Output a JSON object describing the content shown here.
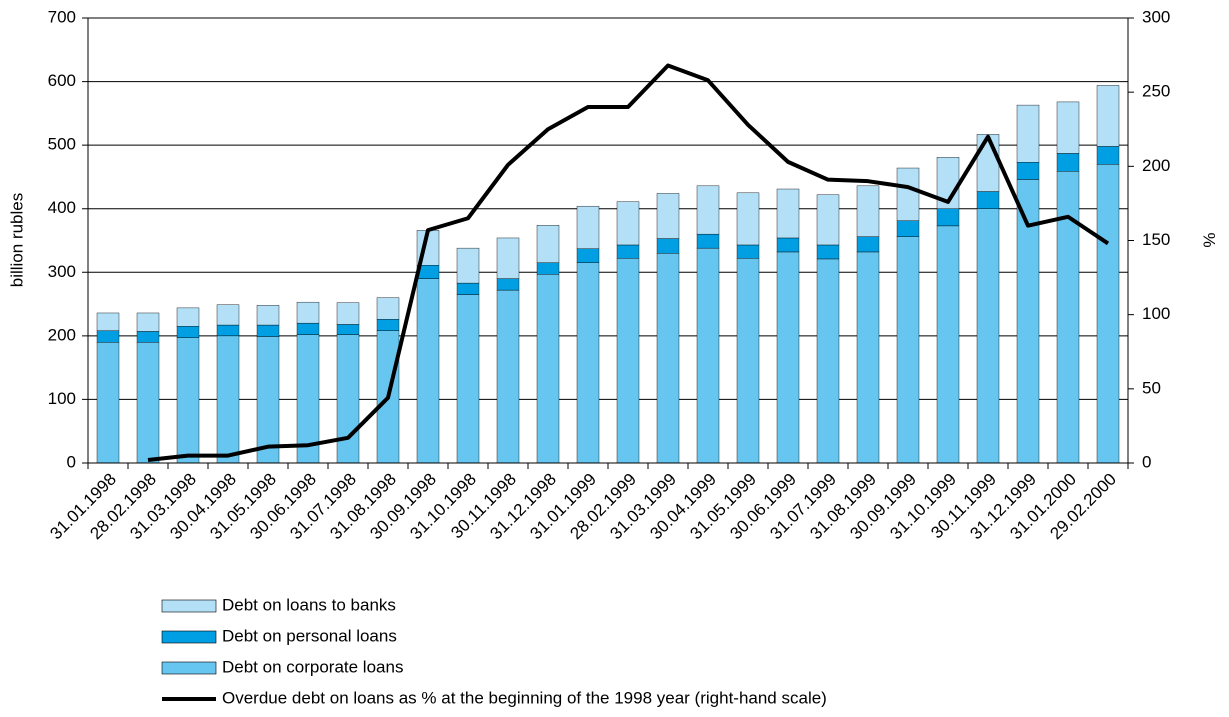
{
  "chart_data": {
    "type": "bar",
    "y_label": "billion rubles",
    "y2_label": "%",
    "categories": [
      "31.01.1998",
      "28.02.1998",
      "31.03.1998",
      "30.04.1998",
      "31.05.1998",
      "30.06.1998",
      "31.07.1998",
      "31.08.1998",
      "30.09.1998",
      "31.10.1998",
      "30.11.1998",
      "31.12.1998",
      "31.01.1999",
      "28.02.1999",
      "31.03.1999",
      "30.04.1999",
      "31.05.1999",
      "30.06.1999",
      "31.07.1999",
      "31.08.1999",
      "30.09.1999",
      "31.10.1999",
      "30.11.1999",
      "31.12.1999",
      "31.01.2000",
      "29.02.2000"
    ],
    "stacked": true,
    "series": [
      {
        "name": "Debt on corporate loans",
        "color": "#66c6ef",
        "values": [
          190,
          190,
          197,
          200,
          199,
          202,
          202,
          208,
          290,
          265,
          272,
          297,
          315,
          322,
          330,
          338,
          322,
          332,
          321,
          332,
          356,
          373,
          400,
          446,
          459,
          470
        ]
      },
      {
        "name": "Debt on personal loans",
        "color": "#009fe3",
        "values": [
          18,
          17,
          18,
          17,
          18,
          18,
          16,
          18,
          21,
          18,
          18,
          18,
          22,
          21,
          23,
          22,
          21,
          22,
          22,
          24,
          25,
          27,
          27,
          27,
          28,
          28
        ]
      },
      {
        "name": "Debt on loans to banks",
        "color": "#b3e0f7",
        "values": [
          28,
          29,
          29,
          32,
          31,
          33,
          34,
          34,
          55,
          55,
          64,
          59,
          67,
          68,
          71,
          76,
          82,
          77,
          79,
          80,
          83,
          81,
          90,
          90,
          81,
          96
        ]
      },
      {
        "name": "Overdue debt on loans as % at the beginning of the 1998 year (right-hand scale)",
        "color": "#000000",
        "type": "line",
        "axis": "y2",
        "values": [
          null,
          2,
          5,
          5,
          11,
          12,
          17,
          44,
          157,
          165,
          201,
          225,
          240,
          240,
          268,
          258,
          228,
          203,
          191,
          190,
          186,
          176,
          220,
          160,
          166,
          148
        ]
      }
    ],
    "ylim": [
      0,
      700
    ],
    "yticks": [
      0,
      100,
      200,
      300,
      400,
      500,
      600,
      700
    ],
    "y2lim": [
      0,
      300
    ],
    "y2ticks": [
      0,
      50,
      100,
      150,
      200,
      250,
      300
    ],
    "grid": true,
    "legend": "bottom"
  }
}
